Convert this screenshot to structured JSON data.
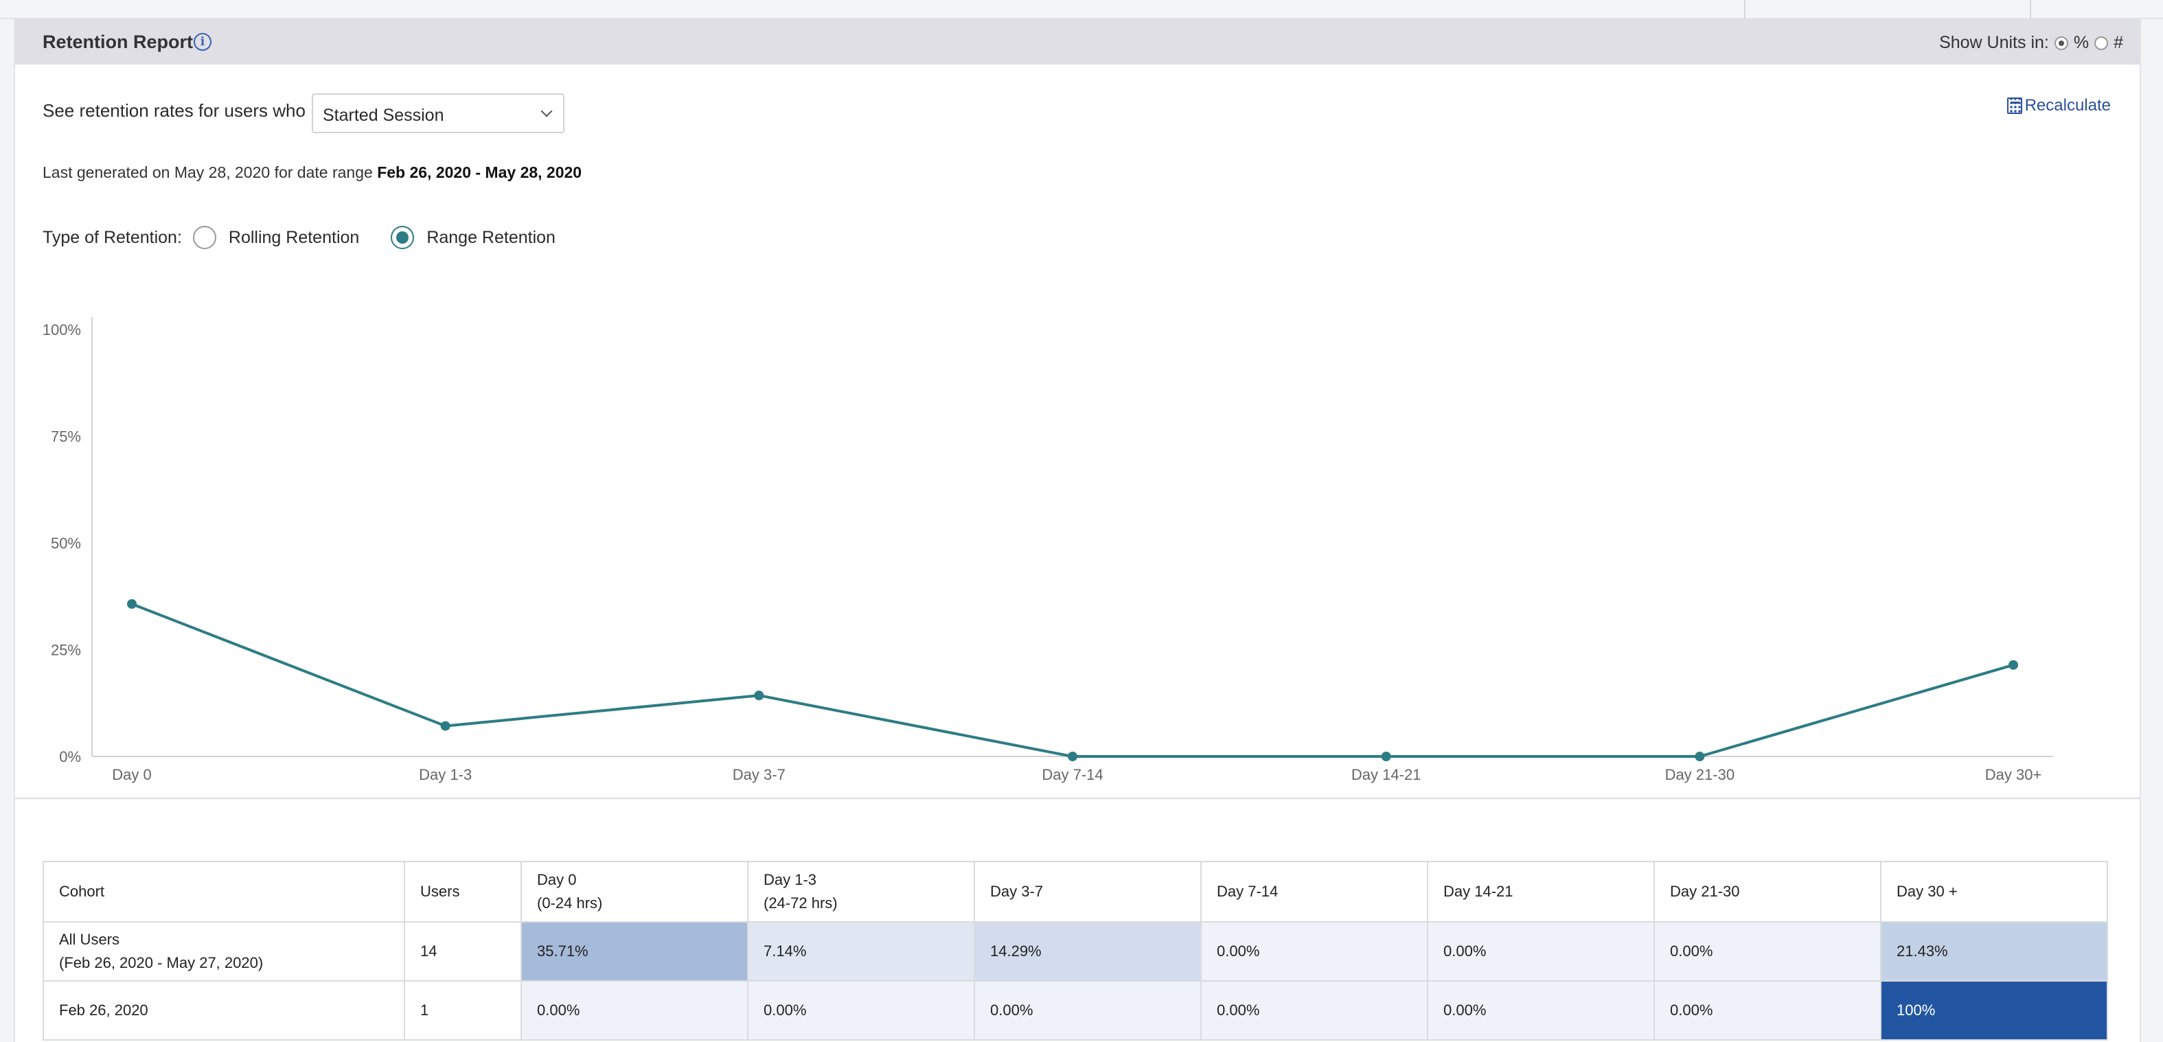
{
  "report": {
    "title": "Retention Report",
    "units_label": "Show Units in:",
    "unit_percent": "%",
    "unit_count": "#",
    "selected_unit": "%"
  },
  "filters": {
    "label": "See retention rates for users who",
    "event": "Started Session",
    "recalculate": "Recalculate"
  },
  "last_generated": {
    "prefix": "Last generated on May 28, 2020 for date range",
    "range": "Feb 26, 2020 - May 28, 2020"
  },
  "retention_type": {
    "label": "Type of Retention:",
    "options": [
      "Rolling Retention",
      "Range Retention"
    ],
    "selected": "Range Retention"
  },
  "chart_data": {
    "type": "line",
    "categories": [
      "Day 0",
      "Day 1-3",
      "Day 3-7",
      "Day 7-14",
      "Day 14-21",
      "Day 21-30",
      "Day 30+"
    ],
    "values": [
      35.71,
      7.14,
      14.29,
      0,
      0,
      0,
      21.43
    ],
    "y_ticks": [
      "100%",
      "75%",
      "50%",
      "25%",
      "0%"
    ],
    "ylim": [
      0,
      100
    ],
    "color": "#2d7c85",
    "grid": false
  },
  "table": {
    "columns": [
      {
        "line1": "Cohort",
        "line2": ""
      },
      {
        "line1": "Users",
        "line2": ""
      },
      {
        "line1": "Day 0",
        "line2": "(0-24 hrs)"
      },
      {
        "line1": "Day 1-3",
        "line2": "(24-72 hrs)"
      },
      {
        "line1": "Day 3-7",
        "line2": ""
      },
      {
        "line1": "Day 7-14",
        "line2": ""
      },
      {
        "line1": "Day 14-21",
        "line2": ""
      },
      {
        "line1": "Day 21-30",
        "line2": ""
      },
      {
        "line1": "Day 30 +",
        "line2": ""
      }
    ],
    "rows": [
      {
        "cohort_line1": "All Users",
        "cohort_line2": "(Feb 26, 2020 - May 27, 2020)",
        "users": "14",
        "values": [
          "35.71%",
          "7.14%",
          "14.29%",
          "0.00%",
          "0.00%",
          "0.00%",
          "21.43%"
        ],
        "fills": [
          0.3571,
          0.0714,
          0.1429,
          0,
          0,
          0,
          0.2143
        ]
      },
      {
        "cohort_line1": "Feb 26, 2020",
        "cohort_line2": "",
        "users": "1",
        "values": [
          "0.00%",
          "0.00%",
          "0.00%",
          "0.00%",
          "0.00%",
          "0.00%",
          "100%"
        ],
        "fills": [
          0,
          0,
          0,
          0,
          0,
          0,
          1
        ]
      }
    ]
  },
  "colors": {
    "accent": "#2d7c85",
    "link": "#2b4f9e",
    "heat_max": "#2256a3"
  }
}
